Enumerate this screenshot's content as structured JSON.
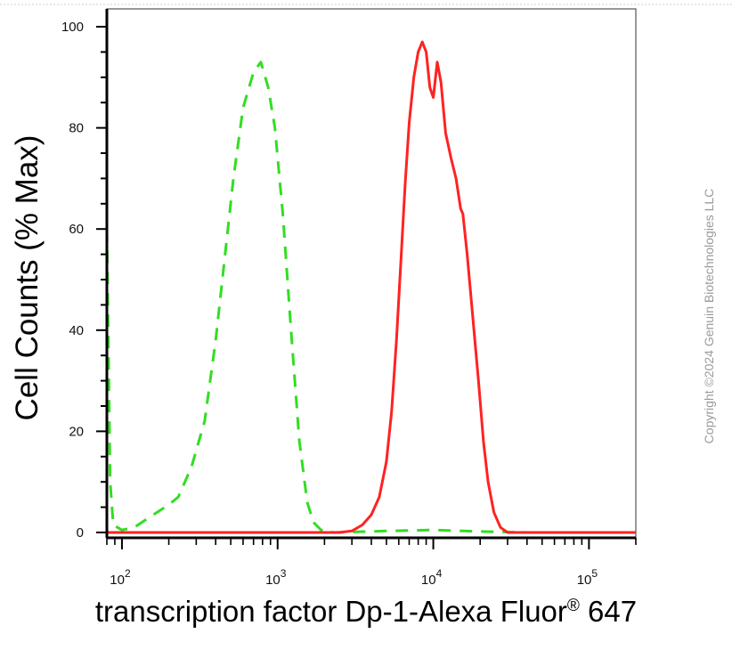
{
  "chart_data": {
    "type": "line",
    "xlabel": "transcription factor Dp-1-Alexa Fluor",
    "xlabel_super": "®",
    "xlabel_suffix": " 647",
    "ylabel": "Cell Counts (% Max)",
    "xscale": "log",
    "xlim": [
      80,
      200000
    ],
    "ylim": [
      0,
      100
    ],
    "yticks": [
      0,
      20,
      40,
      60,
      80,
      100
    ],
    "xticks": [
      {
        "value": 100,
        "base": "10",
        "exp": "2"
      },
      {
        "value": 1000,
        "base": "10",
        "exp": "3"
      },
      {
        "value": 10000,
        "base": "10",
        "exp": "4"
      },
      {
        "value": 100000,
        "base": "10",
        "exp": "5"
      }
    ],
    "grid": false,
    "series": [
      {
        "color": "#33dd22",
        "style": "dashed",
        "points": [
          [
            80,
            60
          ],
          [
            82,
            35
          ],
          [
            84,
            10
          ],
          [
            88,
            1.5
          ],
          [
            100,
            0.5
          ],
          [
            120,
            1
          ],
          [
            150,
            3
          ],
          [
            200,
            5.5
          ],
          [
            230,
            7
          ],
          [
            280,
            13
          ],
          [
            340,
            22
          ],
          [
            400,
            38
          ],
          [
            460,
            55
          ],
          [
            520,
            70
          ],
          [
            600,
            84
          ],
          [
            700,
            91
          ],
          [
            780,
            93
          ],
          [
            870,
            88
          ],
          [
            960,
            80
          ],
          [
            1080,
            63
          ],
          [
            1220,
            40
          ],
          [
            1380,
            18
          ],
          [
            1550,
            6
          ],
          [
            1700,
            2
          ],
          [
            1900,
            0.5
          ],
          [
            2300,
            0
          ],
          [
            5000,
            0.3
          ],
          [
            10000,
            0.5
          ],
          [
            20000,
            0.2
          ],
          [
            40000,
            0
          ],
          [
            200000,
            0
          ]
        ]
      },
      {
        "color": "#ff2222",
        "style": "solid",
        "points": [
          [
            80,
            0
          ],
          [
            2500,
            0
          ],
          [
            3000,
            0.3
          ],
          [
            3500,
            1.5
          ],
          [
            4000,
            3.5
          ],
          [
            4500,
            7
          ],
          [
            5000,
            14
          ],
          [
            5400,
            24
          ],
          [
            5800,
            38
          ],
          [
            6200,
            54
          ],
          [
            6600,
            69
          ],
          [
            7000,
            81
          ],
          [
            7500,
            90
          ],
          [
            8000,
            95
          ],
          [
            8500,
            97
          ],
          [
            9000,
            95
          ],
          [
            9500,
            88
          ],
          [
            10000,
            86
          ],
          [
            10600,
            93
          ],
          [
            11200,
            89
          ],
          [
            12000,
            79
          ],
          [
            13000,
            74
          ],
          [
            14000,
            70
          ],
          [
            15000,
            64
          ],
          [
            15500,
            63
          ],
          [
            16500,
            55
          ],
          [
            18000,
            42
          ],
          [
            19500,
            30
          ],
          [
            21000,
            18
          ],
          [
            22500,
            10
          ],
          [
            24500,
            4
          ],
          [
            27000,
            1
          ],
          [
            30000,
            0
          ],
          [
            200000,
            0
          ]
        ]
      }
    ]
  },
  "copyright": "Copyright ©2024 Genuin Biotechnologies LLC"
}
